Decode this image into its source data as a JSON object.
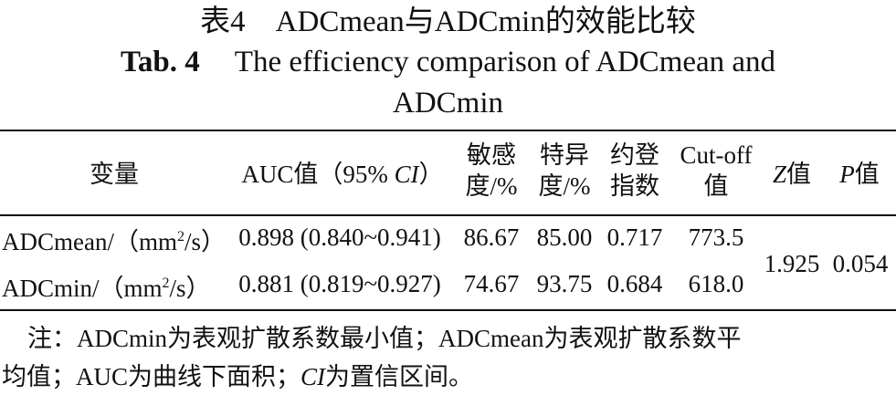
{
  "title": {
    "cn": "表4　ADCmean与ADCmin的效能比较",
    "en_label": "Tab. 4",
    "en_line1": "The efficiency comparison of ADCmean and",
    "en_line2": "ADCmin"
  },
  "table": {
    "headers": {
      "variable": "变量",
      "auc_prefix": "AUC值（95% ",
      "auc_ci": "CI",
      "auc_suffix": "）",
      "sensitivity_l1": "敏感",
      "sensitivity_l2": "度/%",
      "specificity_l1": "特异",
      "specificity_l2": "度/%",
      "youden_l1": "约登",
      "youden_l2": "指数",
      "cutoff_l1": "Cut-off",
      "cutoff_l2": "值",
      "z_italic": "Z",
      "z_suffix": "值",
      "p_italic": "P",
      "p_suffix": "值"
    },
    "rows": [
      {
        "variable_prefix": "ADCmean/（mm",
        "variable_sup": "2",
        "variable_suffix": "/s）",
        "auc": "0.898 (0.840~0.941)",
        "sensitivity": "86.67",
        "specificity": "85.00",
        "youden": "0.717",
        "cutoff": "773.5"
      },
      {
        "variable_prefix": "ADCmin/（mm",
        "variable_sup": "2",
        "variable_suffix": "/s）",
        "auc": "0.881 (0.819~0.927)",
        "sensitivity": "74.67",
        "specificity": "93.75",
        "youden": "0.684",
        "cutoff": "618.0"
      }
    ],
    "z_value": "1.925",
    "p_value": "0.054"
  },
  "note": {
    "line1": "注：ADCmin为表观扩散系数最小值；ADCmean为表观扩散系数平",
    "line2_a": "均值；AUC为曲线下面积；",
    "line2_ci": "CI",
    "line2_b": "为置信区间。"
  }
}
